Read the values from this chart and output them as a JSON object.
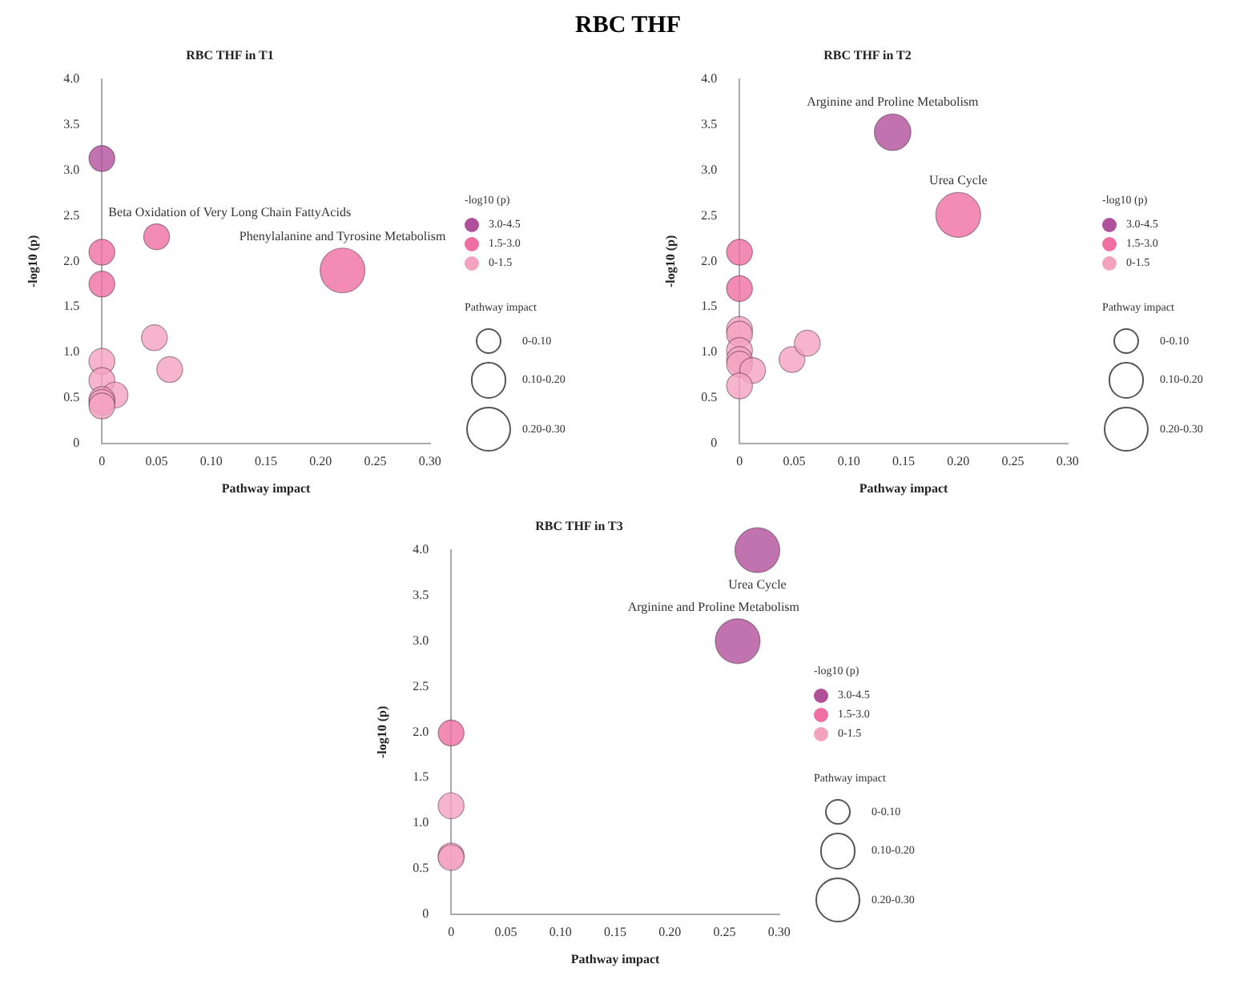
{
  "chart_data": [
    {
      "type": "bubble",
      "subtitle": "RBC THF in T1",
      "xlabel": "Pathway impact",
      "ylabel": "-log10 (p)",
      "legend_title": "-log10 (p)",
      "legend": "right",
      "grid": false,
      "xlim": [
        0,
        0.3
      ],
      "xticks": [
        0,
        0.05,
        {
          "value": 0.1,
          "label": "0.10"
        },
        0.15,
        {
          "value": 0.2,
          "label": "0.20"
        },
        0.25,
        {
          "value": 0.3,
          "label": "0.30"
        }
      ],
      "ylim": [
        0,
        4
      ],
      "yticks": [
        0,
        0.5,
        {
          "value": 1,
          "label": "1.0"
        },
        1.5,
        {
          "value": 2,
          "label": "2.0"
        },
        2.5,
        {
          "value": 3,
          "label": "3.0"
        },
        3.5,
        {
          "value": 4,
          "label": "4.0"
        }
      ],
      "size_legend": [
        {
          "value": 0.1,
          "label": "0-0.10"
        },
        {
          "value": 0.2,
          "label": "0.10-0.20"
        },
        {
          "value": 0.3,
          "label": "0.20-0.30"
        }
      ],
      "series": [
        {
          "name": "3.0-4.5",
          "color": "#b0509a",
          "x": [
            0
          ],
          "values": [
            3.13
          ],
          "sizes": [
            0.1
          ]
        },
        {
          "name": "1.5-3.0",
          "color": "#f06fa2",
          "x": [
            0.05,
            0,
            0,
            0.22
          ],
          "values": [
            2.27,
            2.1,
            1.75,
            1.9
          ],
          "sizes": [
            0.1,
            0.1,
            0.1,
            0.3
          ]
        },
        {
          "name": "0-1.5",
          "color": "#f4a3bf",
          "x": [
            0.048,
            0,
            0.062,
            0,
            0.012,
            0,
            0,
            0
          ],
          "values": [
            1.16,
            0.9,
            0.81,
            0.69,
            0.53,
            0.48,
            0.45,
            0.41
          ],
          "sizes": [
            0.1,
            0.1,
            0.1,
            0.1,
            0.1,
            0.1,
            0.1,
            0.1
          ]
        }
      ],
      "annotations": [
        "RBC THF",
        {
          "text": "Beta Oxidation of Very Long Chain FattyAcids",
          "x": 0.05,
          "y": 2.27
        },
        {
          "text": "Phenylalanine and Tyrosine Metabolism",
          "x": 0.22,
          "y": 1.9
        }
      ]
    },
    {
      "type": "bubble",
      "subtitle": "RBC THF in T2",
      "xlabel": "Pathway impact",
      "ylabel": "-log10 (p)",
      "legend_title": "-log10 (p)",
      "legend": "right",
      "grid": false,
      "xlim": [
        0,
        0.3
      ],
      "xticks": [
        0,
        0.05,
        {
          "value": 0.1,
          "label": "0.10"
        },
        0.15,
        {
          "value": 0.2,
          "label": "0.20"
        },
        0.25,
        {
          "value": 0.3,
          "label": "0.30"
        }
      ],
      "ylim": [
        0,
        4
      ],
      "yticks": [
        0,
        0.5,
        {
          "value": 1,
          "label": "1.0"
        },
        1.5,
        {
          "value": 2,
          "label": "2.0"
        },
        2.5,
        {
          "value": 3,
          "label": "3.0"
        },
        3.5,
        {
          "value": 4,
          "label": "4.0"
        }
      ],
      "size_legend": [
        {
          "value": 0.1,
          "label": "0-0.10"
        },
        {
          "value": 0.2,
          "label": "0.10-0.20"
        },
        {
          "value": 0.3,
          "label": "0.20-0.30"
        }
      ],
      "series": [
        {
          "name": "3.0-4.5",
          "color": "#b0509a",
          "x": [
            0.14
          ],
          "values": [
            3.42
          ],
          "sizes": [
            0.2
          ]
        },
        {
          "name": "1.5-3.0",
          "color": "#f06fa2",
          "x": [
            0.2,
            0,
            0
          ],
          "values": [
            2.51,
            2.1,
            1.7
          ],
          "sizes": [
            0.3,
            0.1,
            0.1
          ]
        },
        {
          "name": "0-1.5",
          "color": "#f4a3bf",
          "x": [
            0,
            0,
            0,
            0,
            0,
            0.012,
            0,
            0.048,
            0.062
          ],
          "values": [
            1.25,
            1.2,
            1.02,
            0.92,
            0.87,
            0.8,
            0.63,
            0.92,
            1.1
          ],
          "sizes": [
            0.1,
            0.1,
            0.1,
            0.1,
            0.1,
            0.1,
            0.1,
            0.1,
            0.1
          ]
        }
      ],
      "annotations": [
        {
          "text": "Arginine and Proline Metabolism",
          "x": 0.14,
          "y": 3.42
        },
        {
          "text": "Urea Cycle",
          "x": 0.2,
          "y": 2.51
        }
      ]
    },
    {
      "type": "bubble",
      "subtitle": "RBC THF in T3",
      "xlabel": "Pathway impact",
      "ylabel": "-log10 (p)",
      "legend_title": "-log10 (p)",
      "legend": "right",
      "grid": false,
      "xlim": [
        0,
        0.3
      ],
      "xticks": [
        0,
        0.05,
        {
          "value": 0.1,
          "label": "0.10"
        },
        0.15,
        {
          "value": 0.2,
          "label": "0.20"
        },
        0.25,
        {
          "value": 0.3,
          "label": "0.30"
        }
      ],
      "ylim": [
        0,
        4
      ],
      "yticks": [
        0,
        0.5,
        {
          "value": 1,
          "label": "1.0"
        },
        1.5,
        {
          "value": 2,
          "label": "2.0"
        },
        2.5,
        {
          "value": 3,
          "label": "3.0"
        },
        3.5,
        {
          "value": 4,
          "label": "4.0"
        }
      ],
      "size_legend": [
        {
          "value": 0.1,
          "label": "0-0.10"
        },
        {
          "value": 0.2,
          "label": "0.10-0.20"
        },
        {
          "value": 0.3,
          "label": "0.20-0.30"
        }
      ],
      "series": [
        {
          "name": "3.0-4.5",
          "color": "#b0509a",
          "x": [
            0.28,
            0.262
          ],
          "values": [
            4.0,
            3.0
          ],
          "sizes": [
            0.3,
            0.3
          ]
        },
        {
          "name": "1.5-3.0",
          "color": "#f06fa2",
          "x": [
            0
          ],
          "values": [
            1.99
          ],
          "sizes": [
            0.1
          ]
        },
        {
          "name": "0-1.5",
          "color": "#f4a3bf",
          "x": [
            0,
            0,
            0
          ],
          "values": [
            1.19,
            0.64,
            0.62
          ],
          "sizes": [
            0.1,
            0.1,
            0.1
          ]
        }
      ],
      "annotations": [
        {
          "text": "Urea Cycle",
          "x": 0.28,
          "y": 4.0
        },
        {
          "text": "Arginine and Proline Metabolism",
          "x": 0.262,
          "y": 3.0
        }
      ]
    }
  ]
}
